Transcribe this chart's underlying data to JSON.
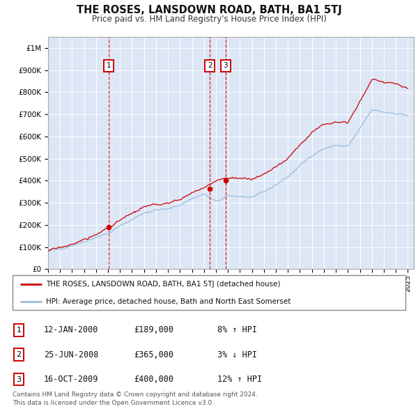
{
  "title": "THE ROSES, LANSDOWN ROAD, BATH, BA1 5TJ",
  "subtitle": "Price paid vs. HM Land Registry's House Price Index (HPI)",
  "plot_bg_color": "#dce6f5",
  "red_line_color": "#cc0000",
  "blue_line_color": "#99bbdd",
  "sale_marker_color": "#cc0000",
  "vline_color": "#cc0000",
  "ylim": [
    0,
    1050000
  ],
  "xlim_start": 1995.0,
  "xlim_end": 2025.5,
  "yticks": [
    0,
    100000,
    200000,
    300000,
    400000,
    500000,
    600000,
    700000,
    800000,
    900000,
    1000000
  ],
  "ytick_labels": [
    "£0",
    "£100K",
    "£200K",
    "£300K",
    "£400K",
    "£500K",
    "£600K",
    "£700K",
    "£800K",
    "£900K",
    "£1M"
  ],
  "xticks": [
    1995,
    1996,
    1997,
    1998,
    1999,
    2000,
    2001,
    2002,
    2003,
    2004,
    2005,
    2006,
    2007,
    2008,
    2009,
    2010,
    2011,
    2012,
    2013,
    2014,
    2015,
    2016,
    2017,
    2018,
    2019,
    2020,
    2021,
    2022,
    2023,
    2024,
    2025
  ],
  "sales": [
    {
      "num": 1,
      "year": 2000.04,
      "price": 189000,
      "date": "12-JAN-2000",
      "label": "£189,000",
      "hpi": "8% ↑ HPI"
    },
    {
      "num": 2,
      "year": 2008.49,
      "price": 365000,
      "date": "25-JUN-2008",
      "label": "£365,000",
      "hpi": "3% ↓ HPI"
    },
    {
      "num": 3,
      "year": 2009.79,
      "price": 400000,
      "date": "16-OCT-2009",
      "label": "£400,000",
      "hpi": "12% ↑ HPI"
    }
  ],
  "legend_line1": "THE ROSES, LANSDOWN ROAD, BATH, BA1 5TJ (detached house)",
  "legend_line2": "HPI: Average price, detached house, Bath and North East Somerset",
  "footnote": "Contains HM Land Registry data © Crown copyright and database right 2024.\nThis data is licensed under the Open Government Licence v3.0.",
  "hpi_anchors_x": [
    1995,
    1996,
    1997,
    1998,
    1999,
    2000,
    2001,
    2002,
    2003,
    2004,
    2005,
    2006,
    2007,
    2008,
    2009,
    2010,
    2011,
    2012,
    2013,
    2014,
    2015,
    2016,
    2017,
    2018,
    2019,
    2020,
    2021,
    2022,
    2023,
    2024,
    2025
  ],
  "hpi_anchors_y": [
    80000,
    92000,
    108000,
    125000,
    145000,
    162000,
    195000,
    225000,
    255000,
    268000,
    272000,
    290000,
    320000,
    340000,
    305000,
    330000,
    330000,
    325000,
    348000,
    382000,
    418000,
    468000,
    515000,
    545000,
    560000,
    555000,
    635000,
    720000,
    710000,
    705000,
    695000
  ],
  "red_anchors_x": [
    1995,
    1996,
    1997,
    1998,
    1999,
    2000,
    2001,
    2002,
    2003,
    2004,
    2005,
    2006,
    2007,
    2008,
    2009,
    2010,
    2011,
    2012,
    2013,
    2014,
    2015,
    2016,
    2017,
    2018,
    2019,
    2020,
    2021,
    2022,
    2023,
    2024,
    2025
  ],
  "red_anchors_y": [
    85000,
    97000,
    114000,
    133000,
    155000,
    189000,
    220000,
    252000,
    280000,
    292000,
    298000,
    315000,
    348000,
    365000,
    400000,
    415000,
    412000,
    405000,
    430000,
    462000,
    500000,
    562000,
    620000,
    655000,
    670000,
    665000,
    755000,
    860000,
    845000,
    840000,
    820000
  ]
}
